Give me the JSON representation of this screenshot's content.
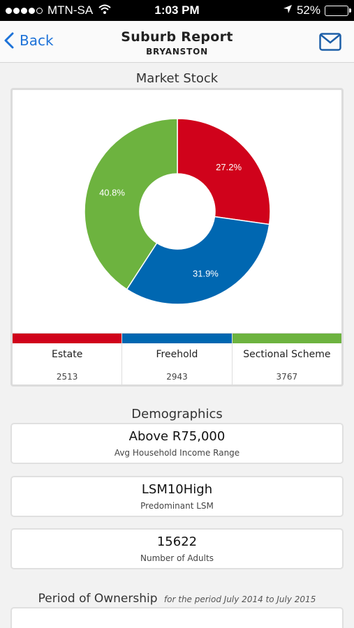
{
  "status_bar": {
    "carrier": "MTN-SA",
    "time": "1:03 PM",
    "battery": "52%",
    "battery_fraction": 0.52
  },
  "nav": {
    "back_label": "Back",
    "title": "Suburb Report",
    "subtitle": "BRYANSTON"
  },
  "market_stock": {
    "title": "Market Stock",
    "legend": [
      {
        "name": "Estate",
        "count": "2513",
        "color": "#d0021b"
      },
      {
        "name": "Freehold",
        "count": "2943",
        "color": "#0067b1"
      },
      {
        "name": "Sectional Scheme",
        "count": "3767",
        "color": "#6db33f"
      }
    ]
  },
  "chart_data": {
    "type": "pie",
    "categories": [
      "Estate",
      "Freehold",
      "Sectional Scheme"
    ],
    "values": [
      27.2,
      31.9,
      40.8
    ],
    "labels": [
      "27.2%",
      "31.9%",
      "40.8%"
    ],
    "colors": [
      "#d0021b",
      "#0067b1",
      "#6db33f"
    ]
  },
  "demographics": {
    "title": "Demographics",
    "items": [
      {
        "value": "Above R75,000",
        "label": "Avg Household Income Range"
      },
      {
        "value": "LSM10High",
        "label": "Predominant LSM"
      },
      {
        "value": "15622",
        "label": "Number of Adults"
      }
    ]
  },
  "ownership": {
    "title": "Period of Ownership",
    "period": "for the period July 2014 to July 2015"
  }
}
